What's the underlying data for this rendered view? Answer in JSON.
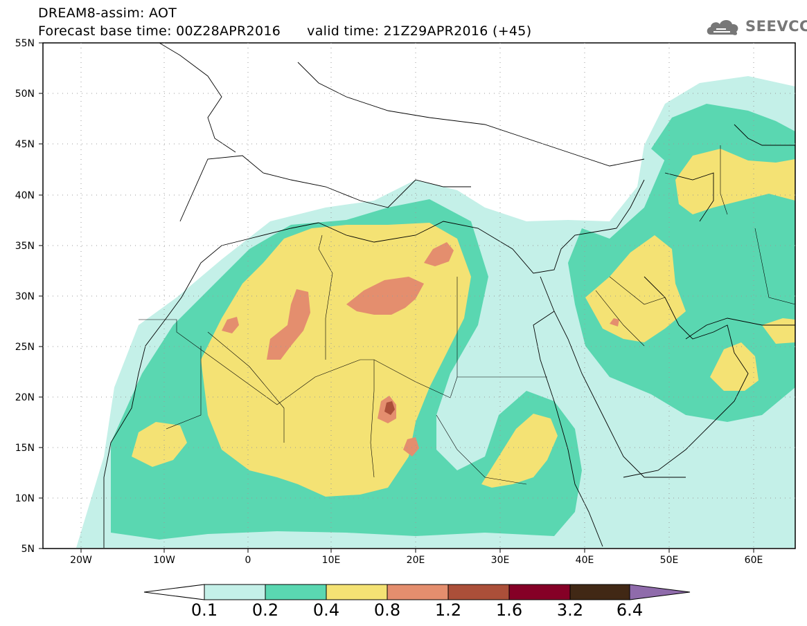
{
  "header": {
    "title_line_1": "DREAM8-assim: AOT",
    "title_line_2": "Forecast base time: 00Z28APR2016      valid time: 21Z29APR2016 (+45)",
    "logo_text": "SEEVCCC"
  },
  "map": {
    "lat_labels": [
      "55N",
      "50N",
      "45N",
      "40N",
      "35N",
      "30N",
      "25N",
      "20N",
      "15N",
      "10N",
      "5N"
    ],
    "lon_labels": [
      "20W",
      "10W",
      "0",
      "10E",
      "20E",
      "30E",
      "40E",
      "50E",
      "60E"
    ],
    "colors": {
      "c01": "#c4f0e8",
      "c02": "#5ad7b1",
      "c04": "#f4e274",
      "c08": "#e48e6e",
      "c12": "#ab4f39",
      "c16": "#850026",
      "c32": "#412815",
      "c64": "#8f6bab"
    }
  },
  "colorbar": {
    "labels": [
      "0.1",
      "0.2",
      "0.4",
      "0.8",
      "1.2",
      "1.6",
      "3.2",
      "6.4"
    ]
  }
}
